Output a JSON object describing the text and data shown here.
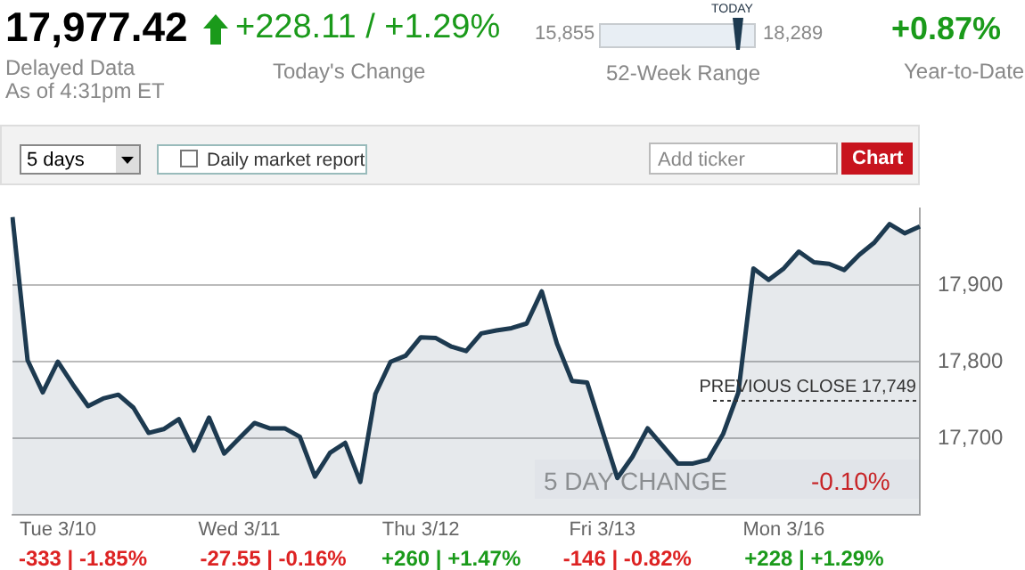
{
  "chart_data": {
    "type": "area",
    "categories": [
      null,
      null,
      null,
      "Tue 3/10",
      null,
      null,
      null,
      null,
      null,
      null,
      null,
      null,
      null,
      null,
      null,
      "Wed 3/11",
      null,
      null,
      null,
      null,
      null,
      null,
      null,
      null,
      null,
      null,
      null,
      "Thu 3/12",
      null,
      null,
      null,
      null,
      null,
      null,
      null,
      null,
      null,
      null,
      null,
      "Fri 3/13",
      null,
      null,
      null,
      null,
      null,
      null,
      null,
      null,
      null,
      null,
      null,
      "Mon 3/16",
      null,
      null,
      null,
      null,
      null,
      null,
      null,
      null,
      null
    ],
    "series": [
      {
        "color": "#1d3a50",
        "values": [
          17989,
          17802,
          17760,
          17800,
          17770,
          17742,
          17752,
          17757,
          17740,
          17707,
          17712,
          17725,
          17684,
          17727,
          17680,
          17700,
          17720,
          17713,
          17713,
          17702,
          17650,
          17681,
          17694,
          17643,
          17758,
          17800,
          17808,
          17832,
          17831,
          17820,
          17814,
          17837,
          17841,
          17844,
          17850,
          17892,
          17824,
          17775,
          17773,
          17710,
          17648,
          17676,
          17713,
          17690,
          17667,
          17667,
          17672,
          17706,
          17760,
          17922,
          17907,
          17922,
          17944,
          17930,
          17928,
          17920,
          17940,
          17956,
          17980,
          17968,
          17977
        ]
      }
    ],
    "ylim": [
      17600,
      18000
    ],
    "yticks": [
      {
        "value": 17700,
        "label": "17,700"
      },
      {
        "value": 17800,
        "label": "17,800"
      },
      {
        "value": 17900,
        "label": "17,900"
      }
    ],
    "grid": "y",
    "ref_lines": [
      {
        "axis": "y",
        "value": 17749,
        "label": "PREVIOUS CLOSE 17,749",
        "line_style": "dashed"
      }
    ],
    "annotations": [
      "17,977.42",
      "Delayed Data",
      "As of 4:31pm ET",
      "+228.11 / +1.29%",
      "Today's Change",
      "15,855",
      "TODAY",
      "18,289",
      "52-Week Range",
      "+0.87%",
      "Year-to-Date",
      "5 days",
      "Daily market report",
      "Add ticker",
      "Chart",
      "5 DAY CHANGE",
      "-0.10%",
      "-333 | -1.85%",
      "-27.55 | -0.16%",
      "+260 | +1.47%",
      "-146 | -0.82%",
      "+228 | +1.29%"
    ]
  }
}
